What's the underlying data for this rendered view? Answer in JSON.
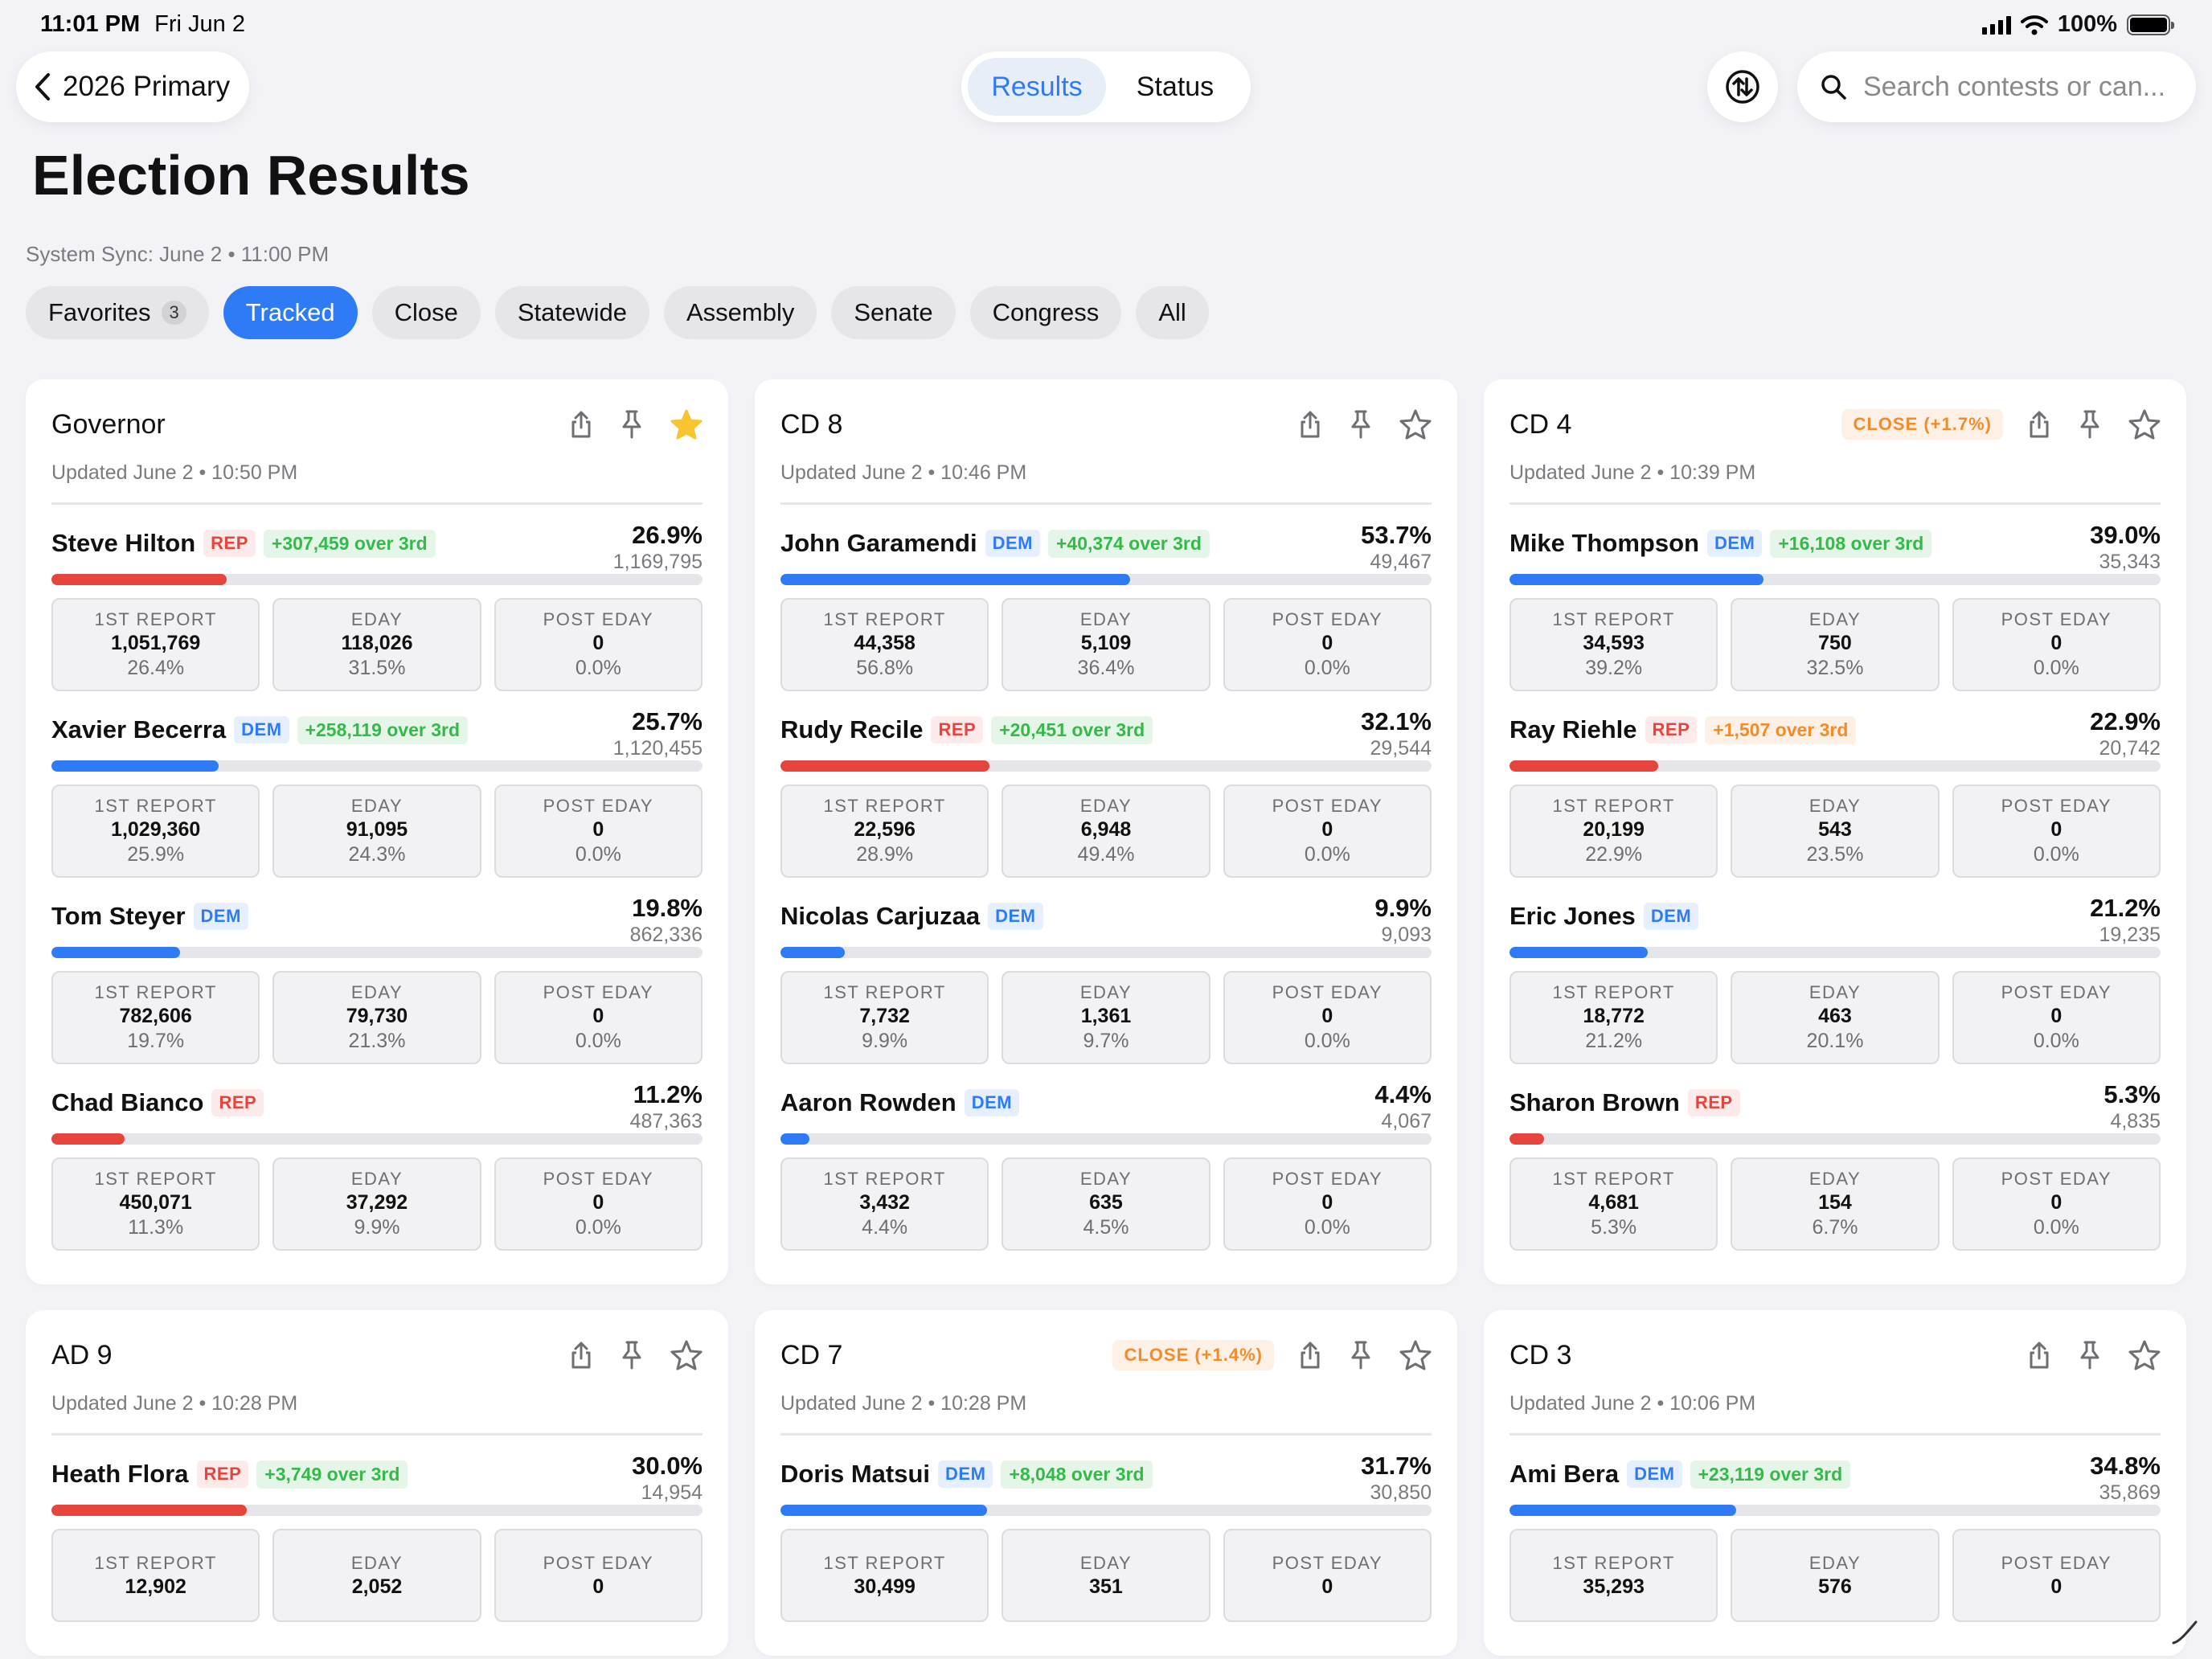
{
  "status_bar": {
    "time": "11:01 PM",
    "date": "Fri Jun 2",
    "battery": "100%"
  },
  "nav": {
    "back_label": "2026 Primary",
    "segments": [
      "Results",
      "Status"
    ],
    "active_segment": "Results",
    "search_placeholder": "Search contests or can..."
  },
  "page": {
    "title": "Election Results",
    "sync": "System Sync: June 2 • 11:00 PM"
  },
  "filters": [
    {
      "label": "Favorites",
      "count": "3"
    },
    {
      "label": "Tracked",
      "active": true
    },
    {
      "label": "Close"
    },
    {
      "label": "Statewide"
    },
    {
      "label": "Assembly"
    },
    {
      "label": "Senate"
    },
    {
      "label": "Congress"
    },
    {
      "label": "All"
    }
  ],
  "box_labels": {
    "first": "1ST REPORT",
    "eday": "EDAY",
    "post": "POST EDAY"
  },
  "colors": {
    "accent": "#2f7bf6",
    "rep": "#e5453d",
    "dem": "#2f7bf6",
    "close": "#f28b2c",
    "lead": "#35b94a",
    "star": "#f7c531"
  },
  "contests": [
    {
      "title": "Governor",
      "updated": "Updated June 2 • 10:50 PM",
      "starred": true,
      "close": "",
      "candidates": [
        {
          "name": "Steve Hilton",
          "party": "REP",
          "margin": "+307,459 over 3rd",
          "margin_color": "green",
          "pct": "26.9%",
          "share": 26.9,
          "votes": "1,169,795",
          "first": {
            "votes": "1,051,769",
            "pct": "26.4%"
          },
          "eday": {
            "votes": "118,026",
            "pct": "31.5%"
          },
          "post": {
            "votes": "0",
            "pct": "0.0%"
          }
        },
        {
          "name": "Xavier Becerra",
          "party": "DEM",
          "margin": "+258,119 over 3rd",
          "margin_color": "green",
          "pct": "25.7%",
          "share": 25.7,
          "votes": "1,120,455",
          "first": {
            "votes": "1,029,360",
            "pct": "25.9%"
          },
          "eday": {
            "votes": "91,095",
            "pct": "24.3%"
          },
          "post": {
            "votes": "0",
            "pct": "0.0%"
          }
        },
        {
          "name": "Tom Steyer",
          "party": "DEM",
          "margin": "",
          "pct": "19.8%",
          "share": 19.8,
          "votes": "862,336",
          "first": {
            "votes": "782,606",
            "pct": "19.7%"
          },
          "eday": {
            "votes": "79,730",
            "pct": "21.3%"
          },
          "post": {
            "votes": "0",
            "pct": "0.0%"
          }
        },
        {
          "name": "Chad Bianco",
          "party": "REP",
          "margin": "",
          "pct": "11.2%",
          "share": 11.2,
          "votes": "487,363",
          "first": {
            "votes": "450,071",
            "pct": "11.3%"
          },
          "eday": {
            "votes": "37,292",
            "pct": "9.9%"
          },
          "post": {
            "votes": "0",
            "pct": "0.0%"
          }
        }
      ]
    },
    {
      "title": "CD 8",
      "updated": "Updated June 2 • 10:46 PM",
      "starred": false,
      "close": "",
      "candidates": [
        {
          "name": "John Garamendi",
          "party": "DEM",
          "margin": "+40,374 over 3rd",
          "margin_color": "green",
          "pct": "53.7%",
          "share": 53.7,
          "votes": "49,467",
          "first": {
            "votes": "44,358",
            "pct": "56.8%"
          },
          "eday": {
            "votes": "5,109",
            "pct": "36.4%"
          },
          "post": {
            "votes": "0",
            "pct": "0.0%"
          }
        },
        {
          "name": "Rudy Recile",
          "party": "REP",
          "margin": "+20,451 over 3rd",
          "margin_color": "green",
          "pct": "32.1%",
          "share": 32.1,
          "votes": "29,544",
          "first": {
            "votes": "22,596",
            "pct": "28.9%"
          },
          "eday": {
            "votes": "6,948",
            "pct": "49.4%"
          },
          "post": {
            "votes": "0",
            "pct": "0.0%"
          }
        },
        {
          "name": "Nicolas Carjuzaa",
          "party": "DEM",
          "margin": "",
          "pct": "9.9%",
          "share": 9.9,
          "votes": "9,093",
          "first": {
            "votes": "7,732",
            "pct": "9.9%"
          },
          "eday": {
            "votes": "1,361",
            "pct": "9.7%"
          },
          "post": {
            "votes": "0",
            "pct": "0.0%"
          }
        },
        {
          "name": "Aaron Rowden",
          "party": "DEM",
          "margin": "",
          "pct": "4.4%",
          "share": 4.4,
          "votes": "4,067",
          "first": {
            "votes": "3,432",
            "pct": "4.4%"
          },
          "eday": {
            "votes": "635",
            "pct": "4.5%"
          },
          "post": {
            "votes": "0",
            "pct": "0.0%"
          }
        }
      ]
    },
    {
      "title": "CD 4",
      "updated": "Updated June 2 • 10:39 PM",
      "starred": false,
      "close": "CLOSE (+1.7%)",
      "candidates": [
        {
          "name": "Mike Thompson",
          "party": "DEM",
          "margin": "+16,108 over 3rd",
          "margin_color": "green",
          "pct": "39.0%",
          "share": 39.0,
          "votes": "35,343",
          "first": {
            "votes": "34,593",
            "pct": "39.2%"
          },
          "eday": {
            "votes": "750",
            "pct": "32.5%"
          },
          "post": {
            "votes": "0",
            "pct": "0.0%"
          }
        },
        {
          "name": "Ray Riehle",
          "party": "REP",
          "margin": "+1,507 over 3rd",
          "margin_color": "orange",
          "pct": "22.9%",
          "share": 22.9,
          "votes": "20,742",
          "first": {
            "votes": "20,199",
            "pct": "22.9%"
          },
          "eday": {
            "votes": "543",
            "pct": "23.5%"
          },
          "post": {
            "votes": "0",
            "pct": "0.0%"
          }
        },
        {
          "name": "Eric Jones",
          "party": "DEM",
          "margin": "",
          "pct": "21.2%",
          "share": 21.2,
          "votes": "19,235",
          "first": {
            "votes": "18,772",
            "pct": "21.2%"
          },
          "eday": {
            "votes": "463",
            "pct": "20.1%"
          },
          "post": {
            "votes": "0",
            "pct": "0.0%"
          }
        },
        {
          "name": "Sharon Brown",
          "party": "REP",
          "margin": "",
          "pct": "5.3%",
          "share": 5.3,
          "votes": "4,835",
          "first": {
            "votes": "4,681",
            "pct": "5.3%"
          },
          "eday": {
            "votes": "154",
            "pct": "6.7%"
          },
          "post": {
            "votes": "0",
            "pct": "0.0%"
          }
        }
      ]
    },
    {
      "title": "AD 9",
      "updated": "Updated June 2 • 10:28 PM",
      "starred": false,
      "close": "",
      "candidates": [
        {
          "name": "Heath Flora",
          "party": "REP",
          "margin": "+3,749 over 3rd",
          "margin_color": "green",
          "pct": "30.0%",
          "share": 30.0,
          "votes": "14,954",
          "first": {
            "votes": "12,902",
            "pct": ""
          },
          "eday": {
            "votes": "2,052",
            "pct": ""
          },
          "post": {
            "votes": "0",
            "pct": ""
          }
        }
      ]
    },
    {
      "title": "CD 7",
      "updated": "Updated June 2 • 10:28 PM",
      "starred": false,
      "close": "CLOSE (+1.4%)",
      "candidates": [
        {
          "name": "Doris Matsui",
          "party": "DEM",
          "margin": "+8,048 over 3rd",
          "margin_color": "green",
          "pct": "31.7%",
          "share": 31.7,
          "votes": "30,850",
          "first": {
            "votes": "30,499",
            "pct": ""
          },
          "eday": {
            "votes": "351",
            "pct": ""
          },
          "post": {
            "votes": "0",
            "pct": ""
          }
        }
      ]
    },
    {
      "title": "CD 3",
      "updated": "Updated June 2 • 10:06 PM",
      "starred": false,
      "close": "",
      "candidates": [
        {
          "name": "Ami Bera",
          "party": "DEM",
          "margin": "+23,119 over 3rd",
          "margin_color": "green",
          "pct": "34.8%",
          "share": 34.8,
          "votes": "35,869",
          "first": {
            "votes": "35,293",
            "pct": ""
          },
          "eday": {
            "votes": "576",
            "pct": ""
          },
          "post": {
            "votes": "0",
            "pct": ""
          }
        }
      ]
    }
  ]
}
